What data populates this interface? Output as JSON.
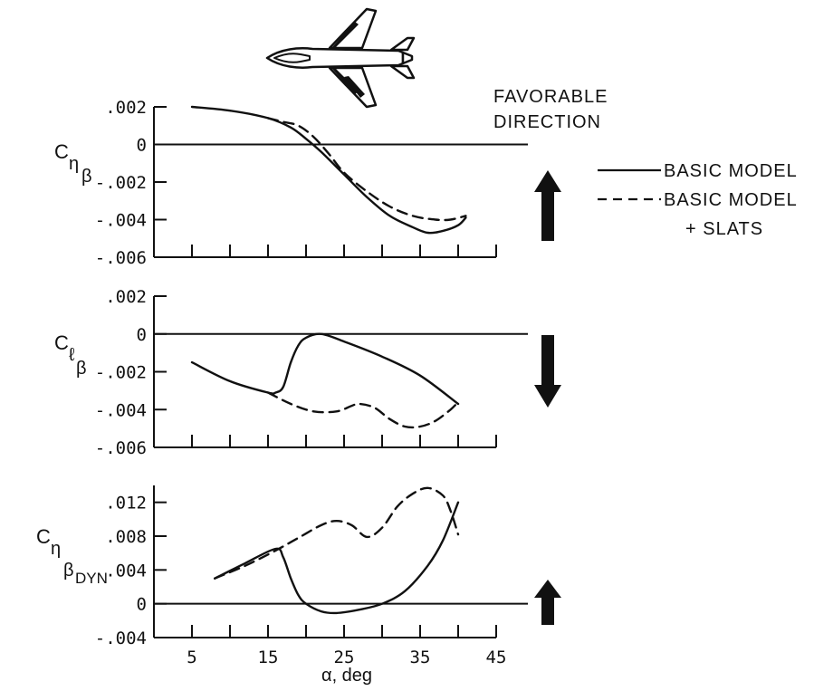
{
  "legend": {
    "favorable_line1": "FAVORABLE",
    "favorable_line2": "DIRECTION",
    "basic_model": "BASIC MODEL",
    "slats_line1": "BASIC MODEL",
    "slats_line2": "+ SLATS"
  },
  "chart_data": [
    {
      "type": "line",
      "ylabel": "Cnβ",
      "xlabel": "",
      "xlim": [
        0,
        45
      ],
      "ylim": [
        -0.006,
        0.002
      ],
      "x_ticks": [
        5,
        10,
        15,
        20,
        25,
        30,
        35,
        40,
        45
      ],
      "y_ticks": [
        0.002,
        0,
        -0.002,
        -0.004,
        -0.006
      ],
      "y_tick_labels": [
        ".002",
        "0",
        "-.002",
        "-.004",
        "-.006"
      ],
      "favorable_direction": "up",
      "series": [
        {
          "name": "BASIC MODEL",
          "style": "solid",
          "x": [
            5,
            10,
            15,
            18,
            20,
            22,
            25,
            28,
            31,
            34,
            36,
            38,
            40,
            41
          ],
          "y": [
            0.002,
            0.0018,
            0.0014,
            0.0009,
            0.0003,
            -0.0004,
            -0.0016,
            -0.0028,
            -0.0038,
            -0.0044,
            -0.0047,
            -0.0046,
            -0.0043,
            -0.0039
          ]
        },
        {
          "name": "BASIC MODEL + SLATS",
          "style": "dashed",
          "x": [
            15,
            17,
            19,
            21,
            23,
            25,
            28,
            31,
            34,
            37,
            39,
            41
          ],
          "y": [
            0.0014,
            0.0012,
            0.001,
            0.0004,
            -0.0005,
            -0.0015,
            -0.0025,
            -0.0033,
            -0.0038,
            -0.004,
            -0.004,
            -0.0038
          ]
        }
      ]
    },
    {
      "type": "line",
      "ylabel": "Clβ",
      "xlabel": "",
      "xlim": [
        0,
        45
      ],
      "ylim": [
        -0.006,
        0.002
      ],
      "x_ticks": [
        5,
        10,
        15,
        20,
        25,
        30,
        35,
        40,
        45
      ],
      "y_ticks": [
        0.002,
        0,
        -0.002,
        -0.004,
        -0.006
      ],
      "y_tick_labels": [
        ".002",
        "0",
        "-.002",
        "-.004",
        "-.006"
      ],
      "favorable_direction": "down",
      "series": [
        {
          "name": "BASIC MODEL",
          "style": "solid",
          "x": [
            5,
            10,
            15,
            16,
            17,
            18,
            19,
            20,
            22,
            25,
            30,
            35,
            40
          ],
          "y": [
            -0.0015,
            -0.0025,
            -0.0031,
            -0.0031,
            -0.0028,
            -0.0015,
            -0.0006,
            -0.0002,
            0,
            -0.0004,
            -0.0012,
            -0.0022,
            -0.0037
          ]
        },
        {
          "name": "BASIC MODEL + SLATS",
          "style": "dashed",
          "x": [
            15,
            18,
            21,
            24,
            26,
            27,
            29,
            31,
            33,
            35,
            37,
            39,
            40
          ],
          "y": [
            -0.0031,
            -0.0037,
            -0.0041,
            -0.0041,
            -0.0038,
            -0.0037,
            -0.0039,
            -0.0045,
            -0.0049,
            -0.0049,
            -0.0046,
            -0.004,
            -0.0036
          ]
        }
      ]
    },
    {
      "type": "line",
      "ylabel": "CnβDYN",
      "xlabel": "α, deg",
      "xlim": [
        0,
        45
      ],
      "ylim": [
        -0.004,
        0.014
      ],
      "x_ticks": [
        5,
        10,
        15,
        20,
        25,
        30,
        35,
        40,
        45
      ],
      "x_tick_labels": [
        "5",
        "",
        "15",
        "",
        "25",
        "",
        "35",
        "",
        "45"
      ],
      "y_ticks": [
        0.012,
        0.008,
        0.004,
        0,
        -0.004
      ],
      "y_tick_labels": [
        ".012",
        ".008",
        ".004",
        "0",
        "-.004"
      ],
      "favorable_direction": "up",
      "series": [
        {
          "name": "BASIC MODEL",
          "style": "solid",
          "x": [
            8,
            12,
            16,
            17,
            18,
            19,
            20,
            22,
            24,
            27,
            30,
            33,
            36,
            38,
            40
          ],
          "y": [
            0.003,
            0.0048,
            0.0065,
            0.0055,
            0.003,
            0.001,
            0,
            -0.0009,
            -0.0011,
            -0.0007,
            0,
            0.0015,
            0.0045,
            0.0075,
            0.012
          ]
        },
        {
          "name": "BASIC MODEL + SLATS",
          "style": "dashed",
          "x": [
            8,
            12,
            16,
            19,
            22,
            24,
            26,
            28,
            30,
            32,
            34,
            36,
            38,
            39,
            40
          ],
          "y": [
            0.003,
            0.0045,
            0.0063,
            0.0078,
            0.0093,
            0.0098,
            0.0093,
            0.0079,
            0.009,
            0.0115,
            0.013,
            0.0137,
            0.0128,
            0.011,
            0.0082
          ]
        }
      ]
    }
  ]
}
